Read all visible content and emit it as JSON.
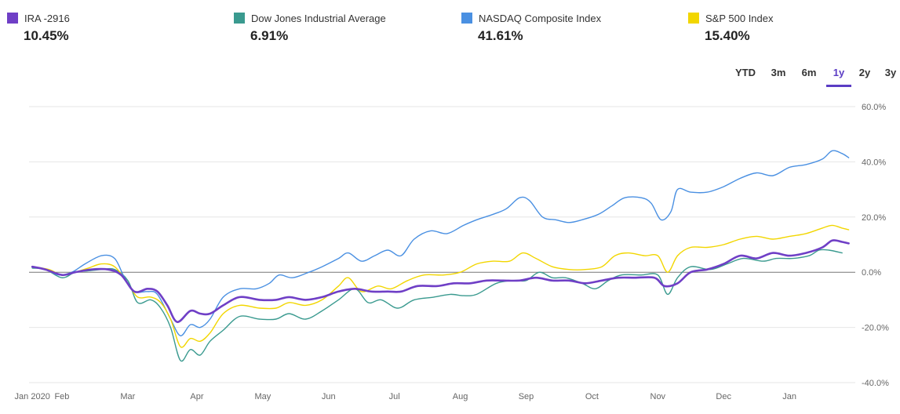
{
  "legend": [
    {
      "name": "IRA -2916",
      "value": "10.45%",
      "color": "#6f3fc6"
    },
    {
      "name": "Dow Jones Industrial Average",
      "value": "6.91%",
      "color": "#3a9a8f"
    },
    {
      "name": "NASDAQ Composite Index",
      "value": "41.61%",
      "color": "#4a90e2"
    },
    {
      "name": "S&P 500 Index",
      "value": "15.40%",
      "color": "#f2d600"
    }
  ],
  "range_tabs": [
    {
      "label": "YTD",
      "active": false
    },
    {
      "label": "3m",
      "active": false
    },
    {
      "label": "6m",
      "active": false
    },
    {
      "label": "1y",
      "active": true
    },
    {
      "label": "2y",
      "active": false
    },
    {
      "label": "3y",
      "active": false
    }
  ],
  "chart_data": {
    "type": "line",
    "x_tick_labels": [
      "Jan 2020",
      "Feb",
      "Mar",
      "Apr",
      "May",
      "Jun",
      "Jul",
      "Aug",
      "Sep",
      "Oct",
      "Nov",
      "Dec",
      "Jan"
    ],
    "y_tick_labels": [
      "60.0%",
      "40.0%",
      "20.0%",
      "0.0%",
      "-20.0%",
      "-40.0%"
    ],
    "ylim": [
      -40,
      60
    ],
    "xlim": [
      0,
      12.55
    ],
    "grid": true,
    "series": [
      {
        "name": "Dow Jones Industrial Average",
        "color": "#3a9a8f",
        "width": 1.4,
        "points": [
          [
            0.05,
            1.5
          ],
          [
            0.25,
            1
          ],
          [
            0.5,
            -2
          ],
          [
            0.7,
            0
          ],
          [
            0.9,
            0.5
          ],
          [
            1.1,
            1
          ],
          [
            1.3,
            1
          ],
          [
            1.5,
            -3
          ],
          [
            1.65,
            -11
          ],
          [
            1.85,
            -10
          ],
          [
            2.0,
            -13
          ],
          [
            2.15,
            -20
          ],
          [
            2.3,
            -32
          ],
          [
            2.45,
            -28
          ],
          [
            2.6,
            -30
          ],
          [
            2.75,
            -25
          ],
          [
            2.95,
            -21
          ],
          [
            3.2,
            -16
          ],
          [
            3.5,
            -17
          ],
          [
            3.75,
            -17
          ],
          [
            3.95,
            -15
          ],
          [
            4.2,
            -17
          ],
          [
            4.45,
            -14
          ],
          [
            4.7,
            -10
          ],
          [
            4.95,
            -6
          ],
          [
            5.15,
            -11
          ],
          [
            5.35,
            -10
          ],
          [
            5.6,
            -13
          ],
          [
            5.85,
            -10
          ],
          [
            6.15,
            -9
          ],
          [
            6.4,
            -8
          ],
          [
            6.6,
            -8.5
          ],
          [
            6.8,
            -8
          ],
          [
            7.1,
            -4
          ],
          [
            7.35,
            -3
          ],
          [
            7.55,
            -3
          ],
          [
            7.75,
            0
          ],
          [
            7.95,
            -2
          ],
          [
            8.15,
            -2
          ],
          [
            8.4,
            -4
          ],
          [
            8.6,
            -6
          ],
          [
            8.8,
            -3
          ],
          [
            9.0,
            -1
          ],
          [
            9.3,
            -1
          ],
          [
            9.55,
            -1
          ],
          [
            9.7,
            -8
          ],
          [
            9.85,
            -2
          ],
          [
            10.05,
            2
          ],
          [
            10.35,
            1
          ],
          [
            10.6,
            3
          ],
          [
            10.85,
            5
          ],
          [
            11.15,
            4
          ],
          [
            11.35,
            5
          ],
          [
            11.6,
            5
          ],
          [
            11.85,
            6
          ],
          [
            12.0,
            8
          ],
          [
            12.15,
            8
          ],
          [
            12.35,
            7
          ]
        ]
      },
      {
        "name": "NASDAQ Composite Index",
        "color": "#4a90e2",
        "width": 1.4,
        "points": [
          [
            0.05,
            2
          ],
          [
            0.25,
            1
          ],
          [
            0.45,
            -1
          ],
          [
            0.65,
            0
          ],
          [
            0.85,
            3
          ],
          [
            1.1,
            6
          ],
          [
            1.3,
            5
          ],
          [
            1.45,
            -2
          ],
          [
            1.6,
            -7
          ],
          [
            1.8,
            -7
          ],
          [
            1.95,
            -8
          ],
          [
            2.15,
            -17
          ],
          [
            2.3,
            -23
          ],
          [
            2.45,
            -19
          ],
          [
            2.6,
            -20
          ],
          [
            2.75,
            -17
          ],
          [
            2.95,
            -9
          ],
          [
            3.2,
            -6
          ],
          [
            3.45,
            -6
          ],
          [
            3.65,
            -4
          ],
          [
            3.8,
            -1
          ],
          [
            4.0,
            -2
          ],
          [
            4.25,
            0
          ],
          [
            4.45,
            2
          ],
          [
            4.7,
            5
          ],
          [
            4.85,
            7
          ],
          [
            5.05,
            4
          ],
          [
            5.25,
            6
          ],
          [
            5.45,
            8
          ],
          [
            5.65,
            6
          ],
          [
            5.85,
            12
          ],
          [
            6.1,
            15
          ],
          [
            6.35,
            14
          ],
          [
            6.6,
            17
          ],
          [
            6.8,
            19
          ],
          [
            7.05,
            21
          ],
          [
            7.25,
            23
          ],
          [
            7.45,
            27
          ],
          [
            7.6,
            26
          ],
          [
            7.8,
            20
          ],
          [
            8.0,
            19
          ],
          [
            8.2,
            18
          ],
          [
            8.4,
            19
          ],
          [
            8.65,
            21
          ],
          [
            8.85,
            24
          ],
          [
            9.05,
            27
          ],
          [
            9.3,
            27
          ],
          [
            9.45,
            25
          ],
          [
            9.6,
            19
          ],
          [
            9.75,
            22
          ],
          [
            9.85,
            30
          ],
          [
            10.05,
            29
          ],
          [
            10.3,
            29
          ],
          [
            10.55,
            31
          ],
          [
            10.8,
            34
          ],
          [
            11.05,
            36
          ],
          [
            11.3,
            35
          ],
          [
            11.55,
            38
          ],
          [
            11.8,
            39
          ],
          [
            12.05,
            41
          ],
          [
            12.2,
            44
          ],
          [
            12.35,
            43
          ],
          [
            12.45,
            41.5
          ]
        ]
      },
      {
        "name": "S&P 500 Index",
        "color": "#f2d600",
        "width": 1.4,
        "points": [
          [
            0.05,
            2
          ],
          [
            0.3,
            1
          ],
          [
            0.5,
            -1
          ],
          [
            0.7,
            0
          ],
          [
            0.9,
            1.5
          ],
          [
            1.1,
            3
          ],
          [
            1.3,
            2
          ],
          [
            1.5,
            -4
          ],
          [
            1.65,
            -9
          ],
          [
            1.85,
            -9
          ],
          [
            2.0,
            -11
          ],
          [
            2.15,
            -17
          ],
          [
            2.3,
            -27
          ],
          [
            2.45,
            -24
          ],
          [
            2.6,
            -25
          ],
          [
            2.75,
            -22
          ],
          [
            2.95,
            -15
          ],
          [
            3.2,
            -12
          ],
          [
            3.5,
            -13
          ],
          [
            3.75,
            -13
          ],
          [
            3.95,
            -11
          ],
          [
            4.2,
            -12
          ],
          [
            4.45,
            -10
          ],
          [
            4.7,
            -5
          ],
          [
            4.85,
            -2
          ],
          [
            5.05,
            -7
          ],
          [
            5.3,
            -5
          ],
          [
            5.5,
            -6
          ],
          [
            5.75,
            -3
          ],
          [
            6.0,
            -1
          ],
          [
            6.3,
            -1
          ],
          [
            6.55,
            0
          ],
          [
            6.8,
            3
          ],
          [
            7.05,
            4
          ],
          [
            7.3,
            4
          ],
          [
            7.5,
            7
          ],
          [
            7.7,
            5
          ],
          [
            7.95,
            2
          ],
          [
            8.2,
            1
          ],
          [
            8.45,
            1
          ],
          [
            8.7,
            2
          ],
          [
            8.9,
            6
          ],
          [
            9.1,
            7
          ],
          [
            9.35,
            6
          ],
          [
            9.55,
            6
          ],
          [
            9.7,
            0
          ],
          [
            9.85,
            6
          ],
          [
            10.05,
            9
          ],
          [
            10.3,
            9
          ],
          [
            10.55,
            10
          ],
          [
            10.8,
            12
          ],
          [
            11.05,
            13
          ],
          [
            11.3,
            12
          ],
          [
            11.55,
            13
          ],
          [
            11.8,
            14
          ],
          [
            12.05,
            16
          ],
          [
            12.2,
            17
          ],
          [
            12.35,
            16
          ],
          [
            12.45,
            15.4
          ]
        ]
      },
      {
        "name": "IRA -2916",
        "color": "#6f3fc6",
        "width": 2.6,
        "points": [
          [
            0.05,
            2
          ],
          [
            0.25,
            1
          ],
          [
            0.5,
            -1
          ],
          [
            0.7,
            0
          ],
          [
            0.95,
            1
          ],
          [
            1.2,
            1
          ],
          [
            1.4,
            -1
          ],
          [
            1.6,
            -7
          ],
          [
            1.8,
            -6
          ],
          [
            1.95,
            -7
          ],
          [
            2.1,
            -12
          ],
          [
            2.25,
            -18
          ],
          [
            2.45,
            -14
          ],
          [
            2.6,
            -15
          ],
          [
            2.75,
            -15
          ],
          [
            2.95,
            -12
          ],
          [
            3.2,
            -9
          ],
          [
            3.5,
            -10
          ],
          [
            3.75,
            -10
          ],
          [
            3.95,
            -9
          ],
          [
            4.2,
            -10
          ],
          [
            4.45,
            -9
          ],
          [
            4.7,
            -7
          ],
          [
            4.95,
            -6
          ],
          [
            5.2,
            -7
          ],
          [
            5.45,
            -7
          ],
          [
            5.65,
            -7
          ],
          [
            5.9,
            -5
          ],
          [
            6.2,
            -5
          ],
          [
            6.45,
            -4
          ],
          [
            6.7,
            -4
          ],
          [
            6.95,
            -3
          ],
          [
            7.2,
            -3
          ],
          [
            7.45,
            -3
          ],
          [
            7.7,
            -2
          ],
          [
            7.95,
            -3
          ],
          [
            8.2,
            -3
          ],
          [
            8.45,
            -4
          ],
          [
            8.7,
            -3
          ],
          [
            8.95,
            -2
          ],
          [
            9.2,
            -2
          ],
          [
            9.5,
            -2
          ],
          [
            9.65,
            -5
          ],
          [
            9.85,
            -4
          ],
          [
            10.05,
            0
          ],
          [
            10.3,
            1
          ],
          [
            10.55,
            3
          ],
          [
            10.8,
            6
          ],
          [
            11.05,
            5
          ],
          [
            11.3,
            7
          ],
          [
            11.55,
            6
          ],
          [
            11.8,
            7
          ],
          [
            12.05,
            9
          ],
          [
            12.2,
            11.5
          ],
          [
            12.35,
            11
          ],
          [
            12.45,
            10.45
          ]
        ]
      }
    ]
  }
}
